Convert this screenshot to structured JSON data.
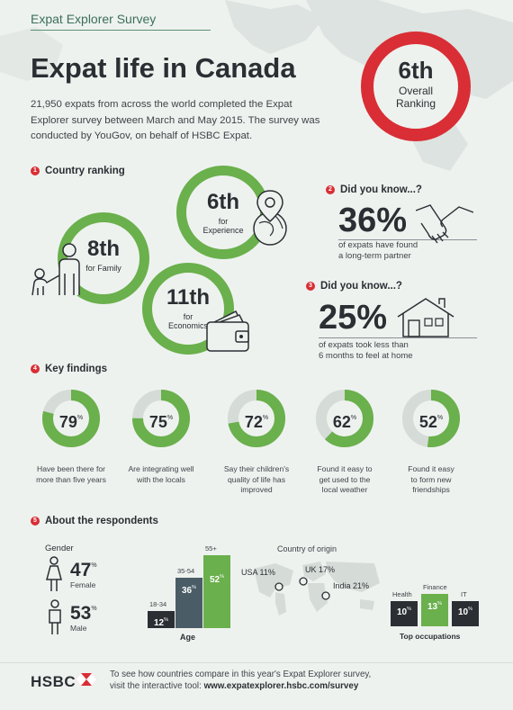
{
  "header": {
    "survey_name": "Expat Explorer Survey",
    "title": "Expat life in Canada",
    "intro": "21,950 expats from across the world completed the Expat Explorer survey between March and May 2015. The survey was conducted by YouGov, on behalf of HSBC Expat."
  },
  "overall": {
    "rank": "6th",
    "label_line1": "Overall",
    "label_line2": "Ranking"
  },
  "country_ranking": {
    "number": "1",
    "heading": "Country ranking",
    "items": [
      {
        "rank": "8th",
        "label": "for Family"
      },
      {
        "rank": "6th",
        "label": "for Experience"
      },
      {
        "rank": "11th",
        "label": "for Economics"
      }
    ]
  },
  "did_you_know_1": {
    "number": "2",
    "heading": "Did you know...?",
    "value": "36%",
    "text_line1": "of expats have found",
    "text_line2": "a long-term partner"
  },
  "did_you_know_2": {
    "number": "3",
    "heading": "Did you know...?",
    "value": "25%",
    "text_line1": "of expats took less than",
    "text_line2": "6 months to feel at home"
  },
  "key_findings": {
    "number": "4",
    "heading": "Key findings",
    "percent_sign": "%",
    "items": [
      {
        "value": 79,
        "line1": "Have been there for",
        "line2": "more than five years",
        "line3": ""
      },
      {
        "value": 75,
        "line1": "Are integrating well",
        "line2": "with the locals",
        "line3": ""
      },
      {
        "value": 72,
        "line1": "Say their children's",
        "line2": "quality of life has",
        "line3": "improved"
      },
      {
        "value": 62,
        "line1": "Found it easy to",
        "line2": "get used to the",
        "line3": "local weather"
      },
      {
        "value": 52,
        "line1": "Found it easy",
        "line2": "to form new",
        "line3": "friendships"
      }
    ]
  },
  "respondents": {
    "number": "5",
    "heading": "About the respondents",
    "gender": {
      "label": "Gender",
      "female_value": "47",
      "female_label": "Female",
      "male_value": "53",
      "male_label": "Male",
      "percent_sign": "%"
    },
    "age": {
      "title": "Age",
      "bars": [
        {
          "label": "18-34",
          "value": 12,
          "color": "#2b2f33"
        },
        {
          "label": "35-54",
          "value": 36,
          "color": "#4a5c66"
        },
        {
          "label": "55+",
          "value": 52,
          "color": "#6ab04c"
        }
      ]
    },
    "origin": {
      "title": "Country of origin",
      "items": [
        {
          "label": "USA 11%"
        },
        {
          "label": "UK 17%"
        },
        {
          "label": "India 21%"
        }
      ]
    },
    "occupations": {
      "title": "Top occupations",
      "bars": [
        {
          "label": "Health",
          "value": 10,
          "color": "#2b2f33"
        },
        {
          "label": "Finance",
          "value": 13,
          "color": "#6ab04c"
        },
        {
          "label": "IT",
          "value": 10,
          "color": "#2b2f33"
        }
      ]
    }
  },
  "footer": {
    "brand": "HSBC",
    "line1": "To see how countries compare in this year's Expat Explorer survey,",
    "line2_prefix": "visit the interactive tool:",
    "url": "www.expatexplorer.hsbc.com/survey"
  },
  "colors": {
    "red": "#d92e35",
    "green": "#6ab04c",
    "dark": "#2b2f33",
    "bg": "#eef2ef"
  }
}
